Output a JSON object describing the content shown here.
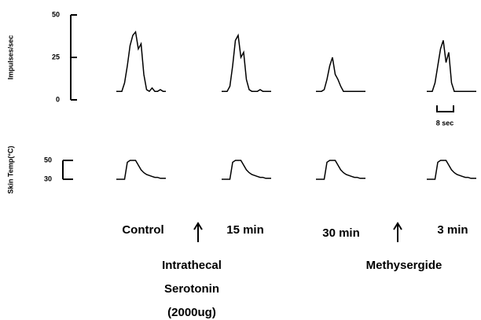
{
  "chart_data": [
    {
      "type": "line",
      "y_label": "Impulses/sec",
      "ylim": [
        0,
        50
      ],
      "yticks": [
        0,
        25,
        50
      ],
      "color": "#000000",
      "series": [
        {
          "values": [
            5,
            5,
            5,
            10,
            20,
            32,
            38,
            40,
            30,
            33,
            15,
            6,
            5,
            7,
            5,
            5,
            6,
            5,
            5
          ]
        },
        {
          "values": [
            5,
            5,
            5,
            8,
            20,
            35,
            38,
            25,
            28,
            12,
            6,
            5,
            5,
            5,
            6,
            5,
            5,
            5,
            5
          ]
        },
        {
          "values": [
            5,
            5,
            5,
            6,
            12,
            20,
            25,
            15,
            12,
            8,
            5,
            5,
            5,
            5,
            5,
            5,
            5,
            5,
            5
          ]
        },
        {
          "values": [
            5,
            5,
            5,
            10,
            20,
            30,
            35,
            22,
            28,
            10,
            5,
            5,
            5,
            5,
            5,
            5,
            5,
            5,
            5
          ]
        }
      ]
    },
    {
      "type": "line",
      "y_label": "Skin Temp(°C)",
      "ylim": [
        30,
        50
      ],
      "yticks": [
        30,
        50
      ],
      "color": "#000000",
      "series": [
        {
          "values": [
            30,
            30,
            30,
            30,
            48,
            50,
            50,
            50,
            45,
            40,
            37,
            35,
            34,
            33,
            32,
            32,
            31,
            31,
            31
          ]
        },
        {
          "values": [
            30,
            30,
            30,
            30,
            48,
            50,
            50,
            50,
            45,
            40,
            37,
            35,
            34,
            33,
            32,
            32,
            31,
            31,
            31
          ]
        },
        {
          "values": [
            30,
            30,
            30,
            30,
            48,
            50,
            50,
            50,
            45,
            40,
            37,
            35,
            34,
            33,
            32,
            32,
            31,
            31,
            31
          ]
        },
        {
          "values": [
            30,
            30,
            30,
            30,
            48,
            50,
            50,
            50,
            45,
            40,
            37,
            35,
            34,
            33,
            32,
            32,
            31,
            31,
            31
          ]
        }
      ]
    }
  ],
  "conditions": [
    "Control",
    "15 min",
    "30 min",
    "3 min"
  ],
  "scale_bar": "8 sec",
  "annotations": [
    "Intrathecal",
    "Serotonin",
    "(2000ug)",
    "Methysergide"
  ]
}
